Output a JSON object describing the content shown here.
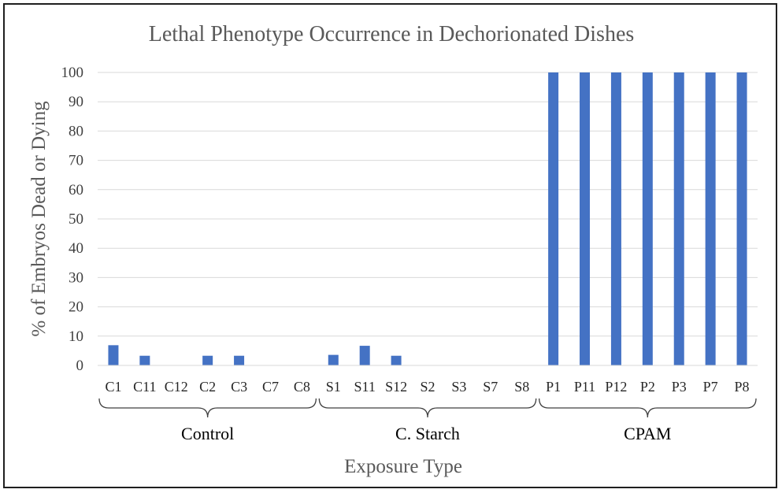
{
  "chart_data": {
    "type": "bar",
    "title": "Lethal Phenotype Occurrence in Dechorionated Dishes",
    "xlabel": "Exposure Type",
    "ylabel": "% of Embryos Dead or Dying",
    "ylim": [
      0,
      100
    ],
    "yticks": [
      0,
      10,
      20,
      30,
      40,
      50,
      60,
      70,
      80,
      90,
      100
    ],
    "grid": true,
    "legend": "none",
    "bar_color": "#4472c4",
    "groups": [
      {
        "name": "Control",
        "categories": [
          "C1",
          "C11",
          "C12",
          "C2",
          "C3",
          "C7",
          "C8"
        ],
        "values": [
          6.9,
          3.3,
          0,
          3.3,
          3.3,
          0,
          0
        ]
      },
      {
        "name": "C. Starch",
        "categories": [
          "S1",
          "S11",
          "S12",
          "S2",
          "S3",
          "S7",
          "S8"
        ],
        "values": [
          3.6,
          6.7,
          3.3,
          0,
          0,
          0,
          0
        ]
      },
      {
        "name": "CPAM",
        "categories": [
          "P1",
          "P11",
          "P12",
          "P2",
          "P3",
          "P7",
          "P8"
        ],
        "values": [
          100,
          100,
          100,
          100,
          100,
          100,
          100
        ]
      }
    ]
  }
}
